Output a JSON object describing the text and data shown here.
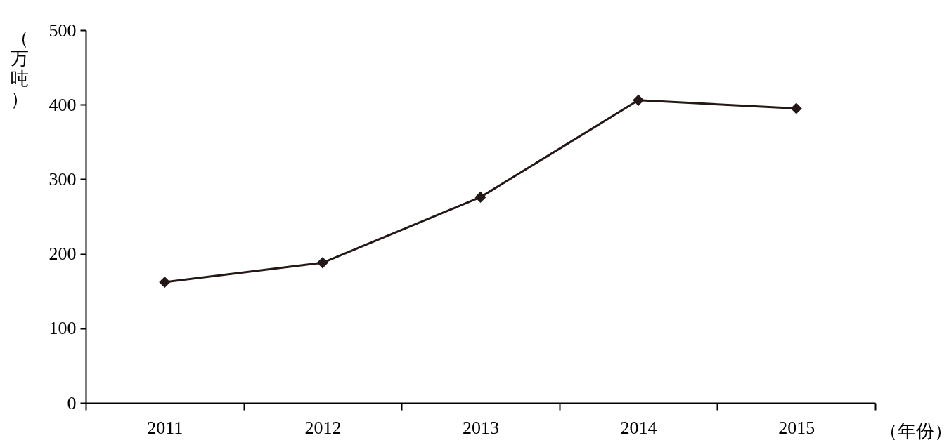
{
  "chart_data": {
    "type": "line",
    "xlabel": "（年份）",
    "ylabel": "（万吨）",
    "categories": [
      "2011",
      "2012",
      "2013",
      "2014",
      "2015"
    ],
    "series": [
      {
        "color": "#231815",
        "values": [
          162,
          188,
          276,
          406,
          395
        ]
      }
    ],
    "ylim": [
      0,
      500
    ],
    "yticks": [
      0,
      100,
      200,
      300,
      400,
      500
    ],
    "grid": false,
    "legend": false,
    "marker": "diamond",
    "line_style": "solid"
  }
}
